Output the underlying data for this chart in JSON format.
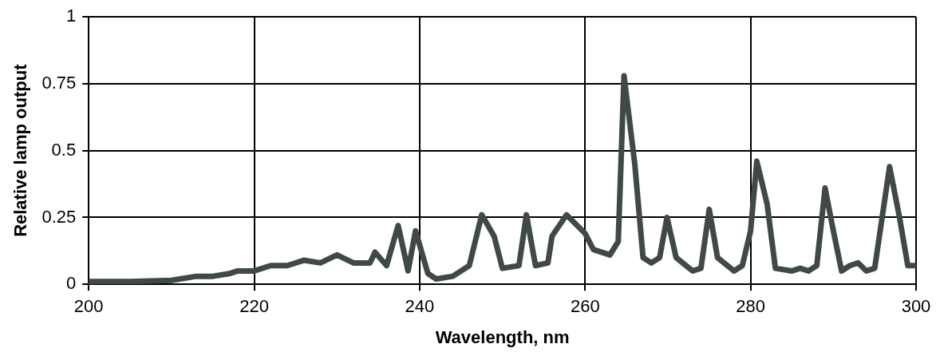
{
  "chart_data": {
    "type": "line",
    "xlabel": "Wavelength, nm",
    "ylabel": "Relative lamp output",
    "x": [
      200,
      205,
      210,
      213,
      215,
      217,
      218,
      220,
      222,
      224,
      226,
      228,
      230,
      232,
      234,
      234.6,
      236,
      237.4,
      238.6,
      239.5,
      241,
      242,
      244,
      246,
      247.5,
      249,
      250,
      252,
      252.9,
      254,
      255.5,
      256,
      257.75,
      260,
      261,
      263,
      264,
      264.7,
      266,
      267,
      268,
      269,
      269.9,
      271,
      273,
      274,
      275,
      276,
      278,
      279,
      280,
      280.75,
      282,
      283,
      285,
      286,
      287,
      288,
      289,
      290,
      291,
      292,
      293,
      294,
      295,
      296.8,
      298,
      299,
      300
    ],
    "series": [
      {
        "color": "#404848",
        "values": [
          0.01,
          0.01,
          0.015,
          0.03,
          0.03,
          0.04,
          0.05,
          0.05,
          0.07,
          0.07,
          0.09,
          0.08,
          0.11,
          0.08,
          0.08,
          0.12,
          0.07,
          0.22,
          0.05,
          0.2,
          0.04,
          0.02,
          0.03,
          0.07,
          0.26,
          0.18,
          0.06,
          0.07,
          0.26,
          0.07,
          0.08,
          0.18,
          0.26,
          0.19,
          0.13,
          0.11,
          0.16,
          0.78,
          0.45,
          0.1,
          0.08,
          0.1,
          0.25,
          0.1,
          0.05,
          0.06,
          0.28,
          0.1,
          0.05,
          0.07,
          0.2,
          0.46,
          0.3,
          0.06,
          0.05,
          0.06,
          0.05,
          0.07,
          0.36,
          0.2,
          0.05,
          0.07,
          0.08,
          0.05,
          0.06,
          0.44,
          0.25,
          0.07,
          0.07
        ]
      }
    ],
    "xlim": [
      200,
      300
    ],
    "xticks": [
      200,
      220,
      240,
      260,
      280,
      300
    ],
    "ylim": [
      0,
      1
    ],
    "yticks": [
      0,
      0.25,
      0.5,
      0.75,
      1
    ],
    "grid": true,
    "legend": false,
    "marker": "none",
    "line_style": "solid"
  }
}
